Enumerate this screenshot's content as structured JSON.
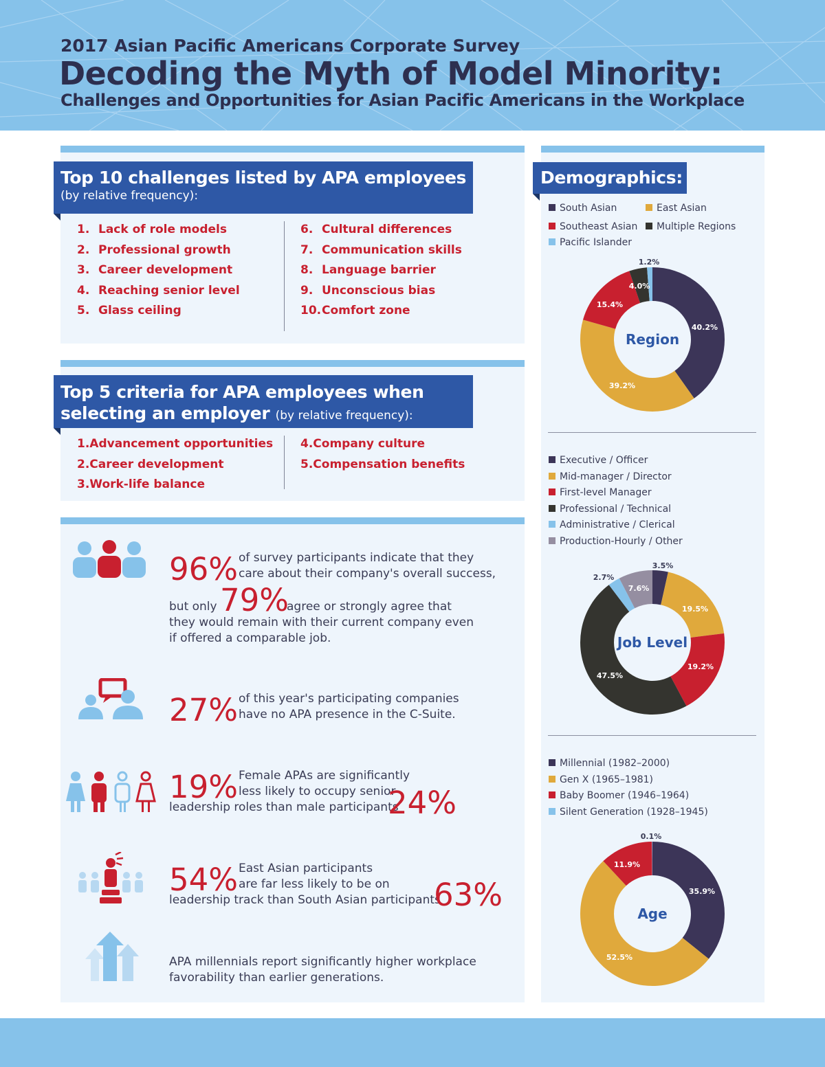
{
  "header": {
    "kicker": "2017 Asian Pacific Americans Corporate Survey",
    "title": "Decoding the Myth of Model Minority:",
    "subtitle": "Challenges and Opportunities for Asian Pacific Americans in the Workplace"
  },
  "colors": {
    "header_bg": "#86c2ea",
    "banner": "#2e58a6",
    "accent_red": "#c8202f",
    "navy": "#3c3558",
    "gold": "#e0a93c",
    "dark": "#34342f",
    "light_blue": "#86c2ea",
    "mauve": "#958ea1"
  },
  "challenges": {
    "title": "Top 10 challenges listed by APA employees",
    "subtitle": "(by relative frequency):",
    "items": [
      {
        "num": "1.",
        "label": "Lack of role models"
      },
      {
        "num": "2.",
        "label": "Professional growth"
      },
      {
        "num": "3.",
        "label": "Career development"
      },
      {
        "num": "4.",
        "label": "Reaching senior level"
      },
      {
        "num": "5.",
        "label": "Glass ceiling"
      },
      {
        "num": "6.",
        "label": "Cultural differences"
      },
      {
        "num": "7.",
        "label": "Communication skills"
      },
      {
        "num": "8.",
        "label": "Language barrier"
      },
      {
        "num": "9.",
        "label": "Unconscious bias"
      },
      {
        "num": "10.",
        "label": "Comfort zone"
      }
    ]
  },
  "criteria": {
    "title_line1": "Top 5 criteria for APA employees when",
    "title_line2": "selecting an employer",
    "subtitle": "(by relative frequency):",
    "items": [
      {
        "num": "1.",
        "label": "Advancement opportunities"
      },
      {
        "num": "2.",
        "label": "Career development"
      },
      {
        "num": "3.",
        "label": "Work-life balance"
      },
      {
        "num": "4.",
        "label": "Company culture"
      },
      {
        "num": "5.",
        "label": "Compensation benefits"
      }
    ]
  },
  "stats": {
    "s1": {
      "pct": "96%",
      "text_a": "of survey participants indicate that they",
      "text_b": "care about their company's overall success,",
      "lead": "but only",
      "pct2": "79%",
      "text_c": "agree or strongly agree that",
      "text_d": "they would remain with their current company even",
      "text_e": "if offered a comparable job."
    },
    "s2": {
      "pct": "27%",
      "text_a": "of this year's participating companies",
      "text_b": "have no APA presence in the C-Suite."
    },
    "s3": {
      "pct": "19%",
      "text_a": "Female APAs are significantly",
      "text_b": "less likely to occupy senior",
      "text_c": "leadership roles than male participants",
      "pct2": "24%"
    },
    "s4": {
      "pct": "54%",
      "text_a": "East Asian participants",
      "text_b": "are far less likely to be on",
      "text_c": "leadership track than South Asian participants",
      "pct2": "63%"
    },
    "s5": {
      "text_a": "APA millennials report significantly higher workplace",
      "text_b": "favorability than earlier generations."
    }
  },
  "demographics": {
    "title": "Demographics:"
  },
  "chart_data": [
    {
      "type": "pie",
      "title": "Region",
      "legend": "top",
      "series": [
        {
          "name": "South Asian",
          "value": 40.2,
          "label": "40.2%",
          "color": "#3c3558"
        },
        {
          "name": "East Asian",
          "value": 39.2,
          "label": "39.2%",
          "color": "#e0a93c"
        },
        {
          "name": "Southeast Asian",
          "value": 15.4,
          "label": "15.4%",
          "color": "#c8202f"
        },
        {
          "name": "Multiple Regions",
          "value": 4.0,
          "label": "4.0%",
          "color": "#34342f"
        },
        {
          "name": "Pacific Islander",
          "value": 1.2,
          "label": "1.2%",
          "color": "#86c2ea"
        }
      ]
    },
    {
      "type": "pie",
      "title": "Job Level",
      "legend": "top",
      "series": [
        {
          "name": "Executive / Officer",
          "value": 3.5,
          "label": "3.5%",
          "color": "#3c3558"
        },
        {
          "name": "Mid-manager / Director",
          "value": 19.5,
          "label": "19.5%",
          "color": "#e0a93c"
        },
        {
          "name": "First-level Manager",
          "value": 19.2,
          "label": "19.2%",
          "color": "#c8202f"
        },
        {
          "name": "Professional / Technical",
          "value": 47.5,
          "label": "47.5%",
          "color": "#34342f"
        },
        {
          "name": "Administrative / Clerical",
          "value": 2.7,
          "label": "2.7%",
          "color": "#86c2ea"
        },
        {
          "name": "Production-Hourly / Other",
          "value": 7.6,
          "label": "7.6%",
          "color": "#958ea1"
        }
      ]
    },
    {
      "type": "pie",
      "title": "Age",
      "legend": "top",
      "series": [
        {
          "name": "Millennial (1982–2000)",
          "value": 35.9,
          "label": "35.9%",
          "color": "#3c3558"
        },
        {
          "name": "Gen X (1965–1981)",
          "value": 52.5,
          "label": "52.5%",
          "color": "#e0a93c"
        },
        {
          "name": "Baby Boomer (1946–1964)",
          "value": 11.9,
          "label": "11.9%",
          "color": "#c8202f"
        },
        {
          "name": "Silent Generation (1928–1945)",
          "value": 0.1,
          "label": "0.1%",
          "color": "#86c2ea"
        }
      ]
    }
  ]
}
